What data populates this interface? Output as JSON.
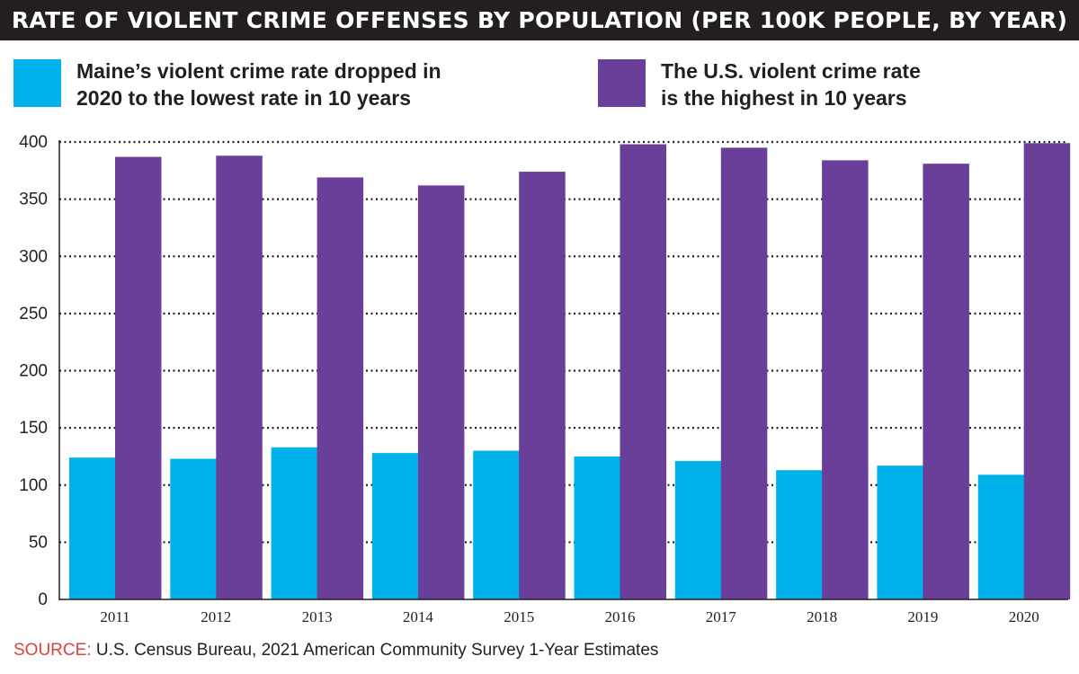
{
  "title": "RATE OF VIOLENT CRIME OFFENSES BY POPULATION (PER 100K PEOPLE, BY YEAR)",
  "legend": [
    {
      "line1": "Maine’s violent crime rate dropped in",
      "line2": "2020 to the lowest rate in 10 years",
      "color": "#00b2ec"
    },
    {
      "line1": "The U.S. violent crime rate",
      "line2": "is the highest in 10 years",
      "color": "#6a3f99"
    }
  ],
  "source": {
    "label": "SOURCE:",
    "text": "U.S. Census Bureau, 2021 American Community Survey 1-Year Estimates"
  },
  "chart_data": {
    "type": "bar",
    "categories": [
      "2011",
      "2012",
      "2013",
      "2014",
      "2015",
      "2016",
      "2017",
      "2018",
      "2019",
      "2020"
    ],
    "series": [
      {
        "name": "Maine’s violent crime rate dropped in 2020 to the lowest rate in 10 years",
        "color": "#00b2ec",
        "values": [
          124,
          123,
          133,
          128,
          130,
          125,
          121,
          113,
          117,
          109
        ]
      },
      {
        "name": "The U.S. violent crime rate is the highest in 10 years",
        "color": "#6a3f99",
        "values": [
          387,
          388,
          369,
          362,
          374,
          398,
          395,
          384,
          381,
          399
        ]
      }
    ],
    "yticks": [
      0,
      50,
      100,
      150,
      200,
      250,
      300,
      350,
      400
    ],
    "ylim": [
      0,
      400
    ],
    "grid": true,
    "grid_style": "dotted",
    "legend_position": "top"
  }
}
